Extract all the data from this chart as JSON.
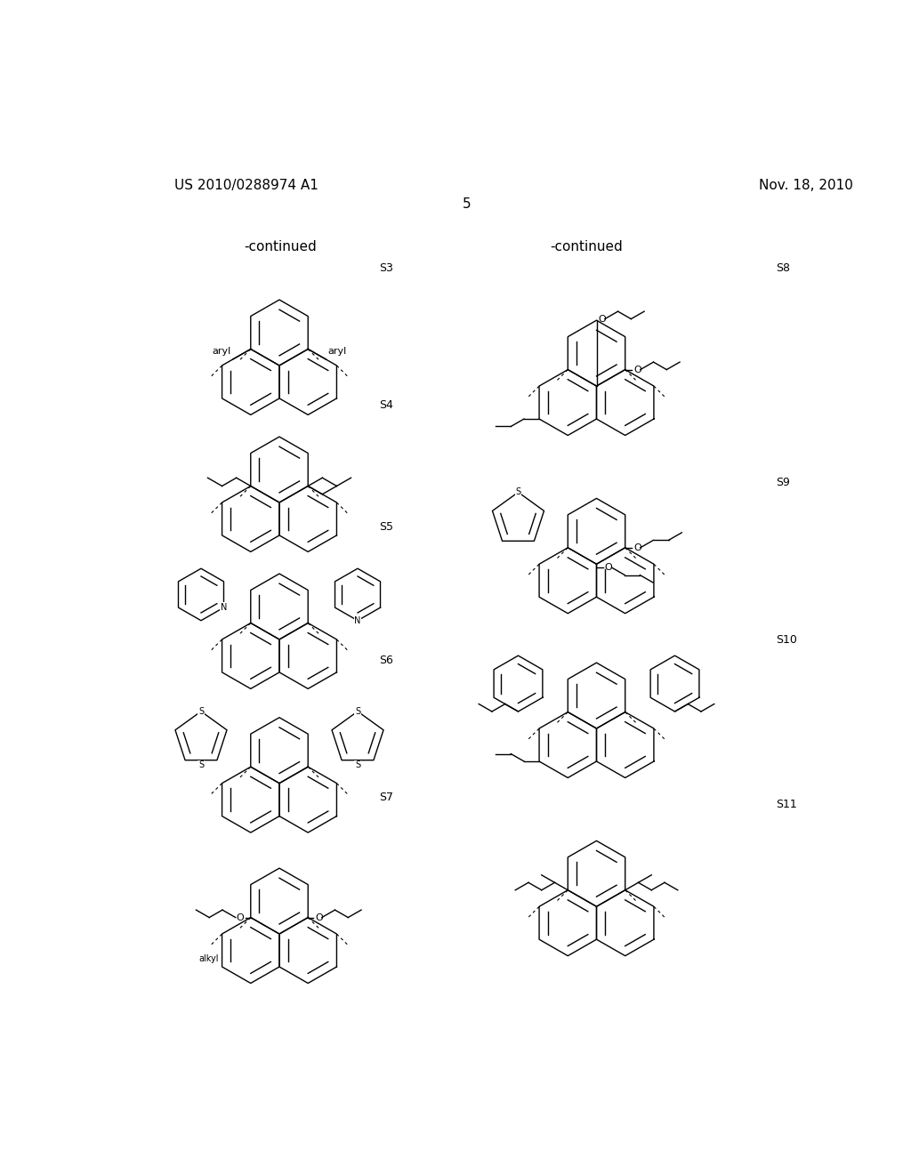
{
  "page_number": "5",
  "patent_number": "US 2010/0288974 A1",
  "date": "Nov. 18, 2010",
  "header_left": "-continued",
  "header_right": "-continued",
  "background_color": "#ffffff",
  "text_color": "#000000",
  "lw_struct": 1.0,
  "lw_dash": 0.8
}
